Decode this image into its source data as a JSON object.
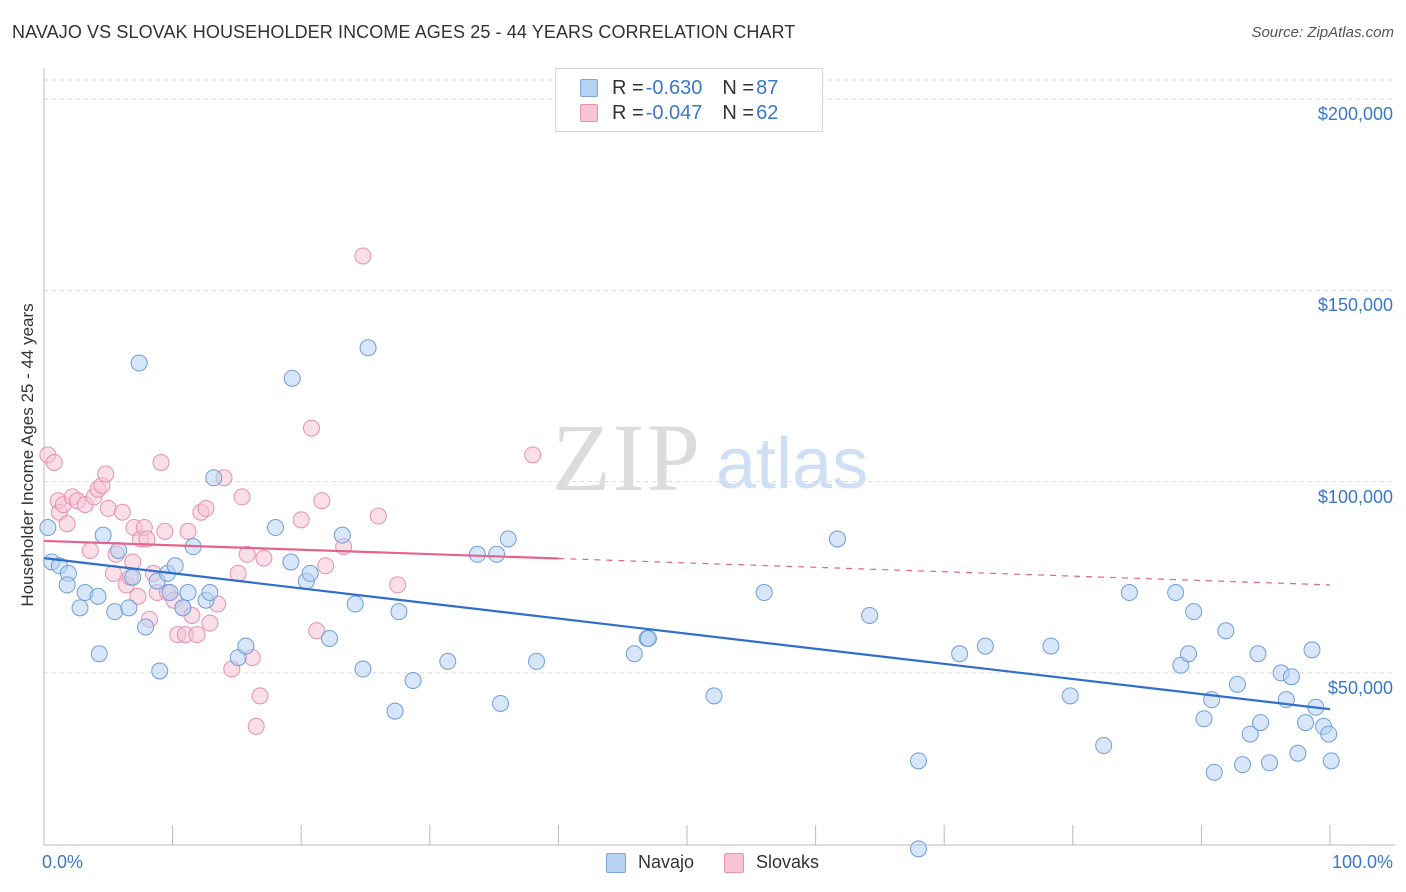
{
  "title": "NAVAJO VS SLOVAK HOUSEHOLDER INCOME AGES 25 - 44 YEARS CORRELATION CHART",
  "source": "Source: ZipAtlas.com",
  "watermark": {
    "zip": "ZIP",
    "atlas": "atlas"
  },
  "legend_top": {
    "navajo": {
      "r_label": "R = ",
      "r_value": "-0.630",
      "n_label": "N = ",
      "n_value": "87"
    },
    "slovaks": {
      "r_label": "R = ",
      "r_value": "-0.047",
      "n_label": "N = ",
      "n_value": "62"
    }
  },
  "legend_bottom": {
    "navajo": "Navajo",
    "slovaks": "Slovaks"
  },
  "colors": {
    "navajo_fill": "#b7d1f3",
    "navajo_stroke": "#6f9ed8",
    "navajo_line": "#2f6fcb",
    "slovaks_fill": "#f7c5d5",
    "slovaks_stroke": "#e88fb0",
    "slovaks_line": "#e5648f",
    "axis_text": "#3a78c9",
    "grid": "#d9d9d9"
  },
  "chart_data": {
    "type": "scatter",
    "xlabel": "",
    "ylabel": "Householder Income Ages 25 - 44 years",
    "x_tick_labels": [
      "0.0%",
      "100.0%"
    ],
    "y_tick_labels": [
      "$50,000",
      "$100,000",
      "$150,000",
      "$200,000"
    ],
    "y_ticks": [
      50000,
      100000,
      150000,
      200000
    ],
    "xlim": [
      0,
      100
    ],
    "ylim": [
      5000,
      205000
    ],
    "grid": true,
    "series": [
      {
        "name": "Navajo",
        "trend": {
          "x0": 0,
          "y0": 80000,
          "x1": 100,
          "y1": 40500,
          "dashed_from": null
        },
        "points": [
          [
            0.3,
            88000
          ],
          [
            0.6,
            79000
          ],
          [
            1.2,
            78000
          ],
          [
            1.9,
            76000
          ],
          [
            1.8,
            73000
          ],
          [
            2.8,
            67000
          ],
          [
            3.2,
            71000
          ],
          [
            4.2,
            70000
          ],
          [
            4.3,
            55000
          ],
          [
            4.6,
            86000
          ],
          [
            5.5,
            66000
          ],
          [
            5.8,
            82000
          ],
          [
            6.6,
            67000
          ],
          [
            6.9,
            75000
          ],
          [
            7.4,
            131000
          ],
          [
            7.9,
            62000
          ],
          [
            8.8,
            74000
          ],
          [
            9.0,
            50500
          ],
          [
            9.6,
            76000
          ],
          [
            9.8,
            71000
          ],
          [
            10.2,
            78000
          ],
          [
            10.8,
            67000
          ],
          [
            11.2,
            71000
          ],
          [
            11.6,
            83000
          ],
          [
            12.6,
            69000
          ],
          [
            12.9,
            71000
          ],
          [
            13.2,
            101000
          ],
          [
            15.1,
            54000
          ],
          [
            15.7,
            57000
          ],
          [
            18.0,
            88000
          ],
          [
            19.2,
            79000
          ],
          [
            19.3,
            127000
          ],
          [
            20.4,
            74000
          ],
          [
            20.7,
            76000
          ],
          [
            22.2,
            59000
          ],
          [
            23.2,
            86000
          ],
          [
            24.2,
            68000
          ],
          [
            24.8,
            51000
          ],
          [
            25.2,
            135000
          ],
          [
            27.3,
            40000
          ],
          [
            27.6,
            66000
          ],
          [
            28.7,
            48000
          ],
          [
            31.4,
            53000
          ],
          [
            33.7,
            81000
          ],
          [
            35.2,
            81000
          ],
          [
            35.5,
            42000
          ],
          [
            36.1,
            85000
          ],
          [
            38.3,
            53000
          ],
          [
            45.9,
            55000
          ],
          [
            46.9,
            59000
          ],
          [
            47.0,
            59000
          ],
          [
            52.1,
            44000
          ],
          [
            56.0,
            71000
          ],
          [
            61.7,
            85000
          ],
          [
            64.2,
            65000
          ],
          [
            68.0,
            27000
          ],
          [
            71.2,
            55000
          ],
          [
            73.2,
            57000
          ],
          [
            78.3,
            57000
          ],
          [
            79.8,
            44000
          ],
          [
            82.4,
            31000
          ],
          [
            84.4,
            71000
          ],
          [
            88.0,
            71000
          ],
          [
            88.4,
            52000
          ],
          [
            89.0,
            55000
          ],
          [
            89.4,
            66000
          ],
          [
            90.2,
            38000
          ],
          [
            90.8,
            43000
          ],
          [
            91.0,
            24000
          ],
          [
            91.9,
            61000
          ],
          [
            92.8,
            47000
          ],
          [
            93.2,
            26000
          ],
          [
            93.8,
            34000
          ],
          [
            94.4,
            55000
          ],
          [
            94.6,
            37000
          ],
          [
            95.3,
            26500
          ],
          [
            96.2,
            50000
          ],
          [
            96.6,
            43000
          ],
          [
            97.0,
            49000
          ],
          [
            97.5,
            29000
          ],
          [
            98.1,
            37000
          ],
          [
            98.6,
            56000
          ],
          [
            98.9,
            41000
          ],
          [
            99.5,
            36000
          ],
          [
            99.9,
            34000
          ],
          [
            100.1,
            27000
          ],
          [
            68.0,
            4000
          ]
        ]
      },
      {
        "name": "Slovaks",
        "trend": {
          "x0": 0,
          "y0": 84500,
          "x1": 100,
          "y1": 73000,
          "dashed_from": 40
        },
        "points": [
          [
            0.3,
            107000
          ],
          [
            0.8,
            105000
          ],
          [
            1.1,
            95000
          ],
          [
            1.2,
            92000
          ],
          [
            1.5,
            94000
          ],
          [
            1.8,
            89000
          ],
          [
            2.2,
            96000
          ],
          [
            2.6,
            95000
          ],
          [
            3.2,
            94000
          ],
          [
            3.6,
            82000
          ],
          [
            3.9,
            96000
          ],
          [
            4.2,
            98000
          ],
          [
            4.5,
            99000
          ],
          [
            4.8,
            102000
          ],
          [
            5.0,
            93000
          ],
          [
            5.4,
            76000
          ],
          [
            5.6,
            81000
          ],
          [
            6.1,
            92000
          ],
          [
            6.4,
            73000
          ],
          [
            6.7,
            75000
          ],
          [
            6.9,
            79000
          ],
          [
            7.0,
            88000
          ],
          [
            7.3,
            70000
          ],
          [
            7.5,
            85000
          ],
          [
            7.8,
            88000
          ],
          [
            8.0,
            85000
          ],
          [
            8.2,
            64000
          ],
          [
            8.5,
            76000
          ],
          [
            8.8,
            71000
          ],
          [
            9.1,
            105000
          ],
          [
            9.4,
            87000
          ],
          [
            9.6,
            71000
          ],
          [
            10.1,
            69000
          ],
          [
            10.4,
            60000
          ],
          [
            10.8,
            67000
          ],
          [
            11.0,
            60000
          ],
          [
            11.2,
            87000
          ],
          [
            11.5,
            65000
          ],
          [
            11.9,
            60000
          ],
          [
            12.2,
            92000
          ],
          [
            12.6,
            93000
          ],
          [
            12.9,
            63000
          ],
          [
            13.5,
            68000
          ],
          [
            14.0,
            101000
          ],
          [
            14.6,
            51000
          ],
          [
            15.1,
            76000
          ],
          [
            15.4,
            96000
          ],
          [
            15.8,
            81000
          ],
          [
            16.2,
            54000
          ],
          [
            16.5,
            36000
          ],
          [
            16.8,
            44000
          ],
          [
            17.1,
            80000
          ],
          [
            20.0,
            90000
          ],
          [
            20.8,
            114000
          ],
          [
            21.2,
            61000
          ],
          [
            21.6,
            95000
          ],
          [
            21.9,
            78000
          ],
          [
            23.3,
            83000
          ],
          [
            24.8,
            159000
          ],
          [
            26.0,
            91000
          ],
          [
            27.5,
            73000
          ],
          [
            38.0,
            107000
          ]
        ]
      }
    ]
  }
}
